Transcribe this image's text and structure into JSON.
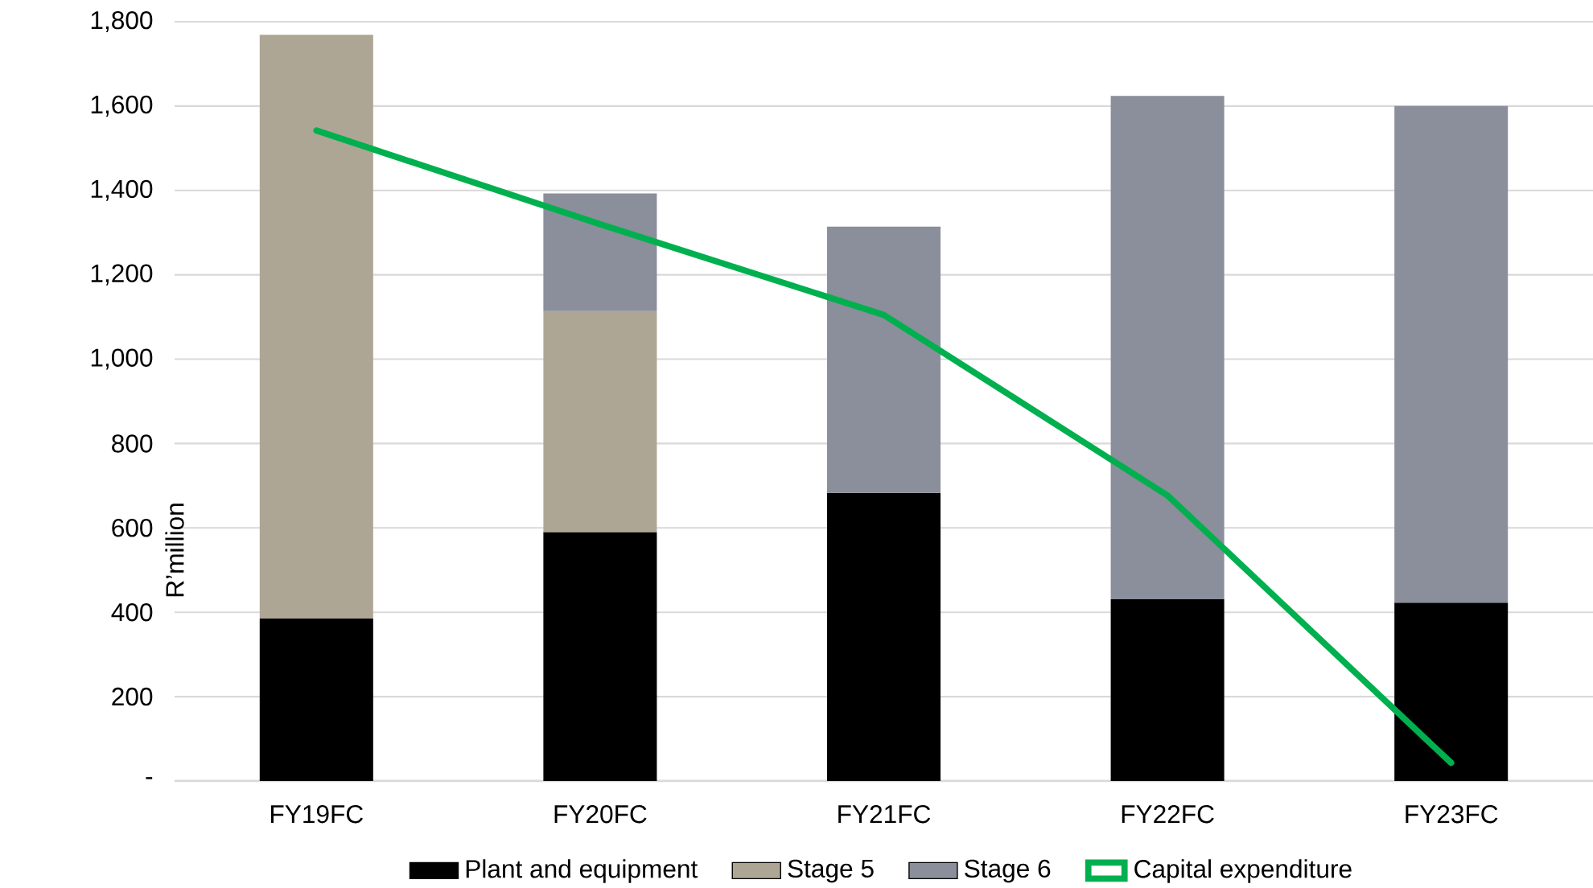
{
  "chart_data": {
    "type": "bar",
    "stacked": true,
    "ylabel": "R’million",
    "categories": [
      "FY19FC",
      "FY20FC",
      "FY21FC",
      "FY22FC",
      "FY23FC"
    ],
    "series": [
      {
        "name": "Plant and equipment",
        "color": "#000000",
        "values": [
          385,
          590,
          683,
          431,
          423
        ]
      },
      {
        "name": "Stage 5",
        "color": "#aea695",
        "values": [
          1384,
          524,
          null,
          null,
          null
        ]
      },
      {
        "name": "Stage 6",
        "color": "#8b8e9b",
        "values": [
          null,
          279,
          631,
          1193,
          1177
        ]
      },
      {
        "name": "Capital expenditure",
        "type": "line",
        "color": "#00b04f",
        "values": [
          1542,
          1320,
          1105,
          677,
          43
        ]
      }
    ],
    "ylim": [
      0,
      1800
    ],
    "yticks": [
      {
        "value": 0,
        "label": "-"
      },
      200,
      400,
      600,
      800,
      {
        "value": 1000,
        "label": "1,000"
      },
      {
        "value": 1200,
        "label": "1,200"
      },
      {
        "value": 1400,
        "label": "1,400"
      },
      {
        "value": 1600,
        "label": "1,600"
      },
      {
        "value": 1800,
        "label": "1,800"
      }
    ],
    "grid": "y",
    "legend": "bottom"
  }
}
